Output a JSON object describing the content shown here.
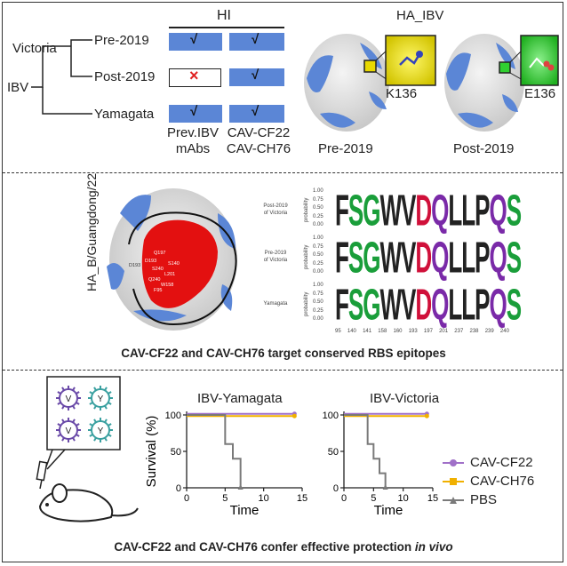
{
  "panel1": {
    "hi_header": "HI",
    "ha_title": "HA_IBV",
    "tree": {
      "root": "IBV",
      "lineage_a": "Victoria",
      "lineage_b": "Yamagata",
      "leaf_pre": "Pre-2019",
      "leaf_post": "Post-2019",
      "leaf_yam": "Yamagata"
    },
    "cells": {
      "check": "√",
      "cross": "×"
    },
    "col_labels": {
      "prev_line1": "Prev.IBV",
      "prev_line2": "mAbs",
      "cav_line1": "CAV-CF22",
      "cav_line2": "CAV-CH76"
    },
    "structures": {
      "pre_label": "Pre-2019",
      "post_label": "Post-2019",
      "pre_residue": "K136",
      "post_residue": "E136"
    },
    "colors": {
      "bar": "#5b86d6",
      "cross": "#e02020",
      "yellow": "#f0e000",
      "green": "#28c828"
    }
  },
  "panel2": {
    "vertical_label": "HA_B/Guangdong/22",
    "caption": "CAV-CF22 and CAV-CH76 target conserved RBS epitopes",
    "epitope_labels": [
      "D193",
      "Q197",
      "D193",
      "S240",
      "L201",
      "Q240",
      "W158",
      "F95",
      "S140"
    ],
    "logos": [
      {
        "name_line1": "Post-2019",
        "name_line2": "of Victoria"
      },
      {
        "name_line1": "Pre-2019",
        "name_line2": "of Victoria"
      },
      {
        "name_line1": "Yamagata",
        "name_line2": ""
      }
    ],
    "y_ticks": [
      "1.00",
      "0.75",
      "0.50",
      "0.25",
      "0.00"
    ],
    "y_axis_label": "probability",
    "sequence": [
      {
        "aa": "F",
        "color": "#222222"
      },
      {
        "aa": "S",
        "color": "#1a9e3a"
      },
      {
        "aa": "G",
        "color": "#1a9e3a"
      },
      {
        "aa": "W",
        "color": "#222222"
      },
      {
        "aa": "V",
        "color": "#222222"
      },
      {
        "aa": "D",
        "color": "#d0103a"
      },
      {
        "aa": "Q",
        "color": "#7a2aa8"
      },
      {
        "aa": "L",
        "color": "#222222"
      },
      {
        "aa": "L",
        "color": "#222222"
      },
      {
        "aa": "P",
        "color": "#222222"
      },
      {
        "aa": "Q",
        "color": "#7a2aa8"
      },
      {
        "aa": "S",
        "color": "#1a9e3a"
      }
    ],
    "positions": [
      "95",
      "140",
      "141",
      "158",
      "160",
      "193",
      "197",
      "201",
      "237",
      "238",
      "239",
      "240"
    ]
  },
  "panel3": {
    "caption_main": "CAV-CF22 and CAV-CH76 confer effective protection ",
    "caption_italic": "in vivo",
    "virus_letters": [
      "V",
      "Y",
      "V",
      "Y"
    ],
    "xlabel": "Time",
    "ylabel": "Survival (%)",
    "legend": [
      {
        "name": "CAV-CF22",
        "color": "#a070c8"
      },
      {
        "name": "CAV-CH76",
        "color": "#f0b000"
      },
      {
        "name": "PBS",
        "color": "#7a7a7a"
      }
    ]
  },
  "chart_data": [
    {
      "type": "line",
      "title": "IBV-Yamagata",
      "xlabel": "Time",
      "ylabel": "Survival (%)",
      "xlim": [
        0,
        15
      ],
      "ylim": [
        0,
        100
      ],
      "x_ticks": [
        0,
        5,
        10,
        15
      ],
      "y_ticks": [
        0,
        50,
        100
      ],
      "series": [
        {
          "name": "CAV-CF22",
          "color": "#a070c8",
          "x": [
            0,
            14
          ],
          "y": [
            100,
            100
          ]
        },
        {
          "name": "CAV-CH76",
          "color": "#f0b000",
          "x": [
            0,
            14
          ],
          "y": [
            100,
            100
          ]
        },
        {
          "name": "PBS",
          "color": "#7a7a7a",
          "x": [
            0,
            5,
            5,
            6,
            6,
            7,
            7
          ],
          "y": [
            100,
            100,
            60,
            60,
            40,
            40,
            0
          ]
        }
      ]
    },
    {
      "type": "line",
      "title": "IBV-Victoria",
      "xlabel": "Time",
      "ylabel": "Survival (%)",
      "xlim": [
        0,
        15
      ],
      "ylim": [
        0,
        100
      ],
      "x_ticks": [
        0,
        5,
        10,
        15
      ],
      "y_ticks": [
        0,
        50,
        100
      ],
      "series": [
        {
          "name": "CAV-CF22",
          "color": "#a070c8",
          "x": [
            0,
            14
          ],
          "y": [
            100,
            100
          ]
        },
        {
          "name": "CAV-CH76",
          "color": "#f0b000",
          "x": [
            0,
            14
          ],
          "y": [
            100,
            100
          ]
        },
        {
          "name": "PBS",
          "color": "#7a7a7a",
          "x": [
            0,
            4,
            4,
            5,
            5,
            6,
            6,
            7,
            7
          ],
          "y": [
            100,
            100,
            60,
            60,
            40,
            40,
            20,
            20,
            0
          ]
        }
      ]
    }
  ]
}
